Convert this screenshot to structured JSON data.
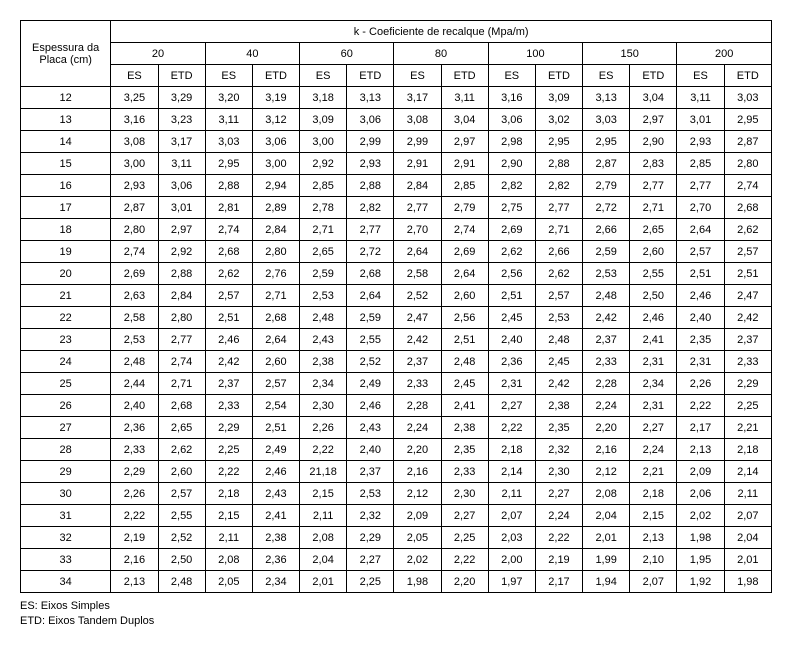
{
  "header": {
    "rowLabel": "Espessura da Placa (cm)",
    "groupLabel": "k - Coeficiente de recalque (Mpa/m)",
    "kValues": [
      "20",
      "40",
      "60",
      "80",
      "100",
      "150",
      "200"
    ],
    "subCols": [
      "ES",
      "ETD"
    ]
  },
  "rows": [
    {
      "ep": "12",
      "v": [
        "3,25",
        "3,29",
        "3,20",
        "3,19",
        "3,18",
        "3,13",
        "3,17",
        "3,11",
        "3,16",
        "3,09",
        "3,13",
        "3,04",
        "3,11",
        "3,03"
      ]
    },
    {
      "ep": "13",
      "v": [
        "3,16",
        "3,23",
        "3,11",
        "3,12",
        "3,09",
        "3,06",
        "3,08",
        "3,04",
        "3,06",
        "3,02",
        "3,03",
        "2,97",
        "3,01",
        "2,95"
      ]
    },
    {
      "ep": "14",
      "v": [
        "3,08",
        "3,17",
        "3,03",
        "3,06",
        "3,00",
        "2,99",
        "2,99",
        "2,97",
        "2,98",
        "2,95",
        "2,95",
        "2,90",
        "2,93",
        "2,87"
      ]
    },
    {
      "ep": "15",
      "v": [
        "3,00",
        "3,11",
        "2,95",
        "3,00",
        "2,92",
        "2,93",
        "2,91",
        "2,91",
        "2,90",
        "2,88",
        "2,87",
        "2,83",
        "2,85",
        "2,80"
      ]
    },
    {
      "ep": "16",
      "v": [
        "2,93",
        "3,06",
        "2,88",
        "2,94",
        "2,85",
        "2,88",
        "2,84",
        "2,85",
        "2,82",
        "2,82",
        "2,79",
        "2,77",
        "2,77",
        "2,74"
      ]
    },
    {
      "ep": "17",
      "v": [
        "2,87",
        "3,01",
        "2,81",
        "2,89",
        "2,78",
        "2,82",
        "2,77",
        "2,79",
        "2,75",
        "2,77",
        "2,72",
        "2,71",
        "2,70",
        "2,68"
      ]
    },
    {
      "ep": "18",
      "v": [
        "2,80",
        "2,97",
        "2,74",
        "2,84",
        "2,71",
        "2,77",
        "2,70",
        "2,74",
        "2,69",
        "2,71",
        "2,66",
        "2,65",
        "2,64",
        "2,62"
      ]
    },
    {
      "ep": "19",
      "v": [
        "2,74",
        "2,92",
        "2,68",
        "2,80",
        "2,65",
        "2,72",
        "2,64",
        "2,69",
        "2,62",
        "2,66",
        "2,59",
        "2,60",
        "2,57",
        "2,57"
      ]
    },
    {
      "ep": "20",
      "v": [
        "2,69",
        "2,88",
        "2,62",
        "2,76",
        "2,59",
        "2,68",
        "2,58",
        "2,64",
        "2,56",
        "2,62",
        "2,53",
        "2,55",
        "2,51",
        "2,51"
      ]
    },
    {
      "ep": "21",
      "v": [
        "2,63",
        "2,84",
        "2,57",
        "2,71",
        "2,53",
        "2,64",
        "2,52",
        "2,60",
        "2,51",
        "2,57",
        "2,48",
        "2,50",
        "2,46",
        "2,47"
      ]
    },
    {
      "ep": "22",
      "v": [
        "2,58",
        "2,80",
        "2,51",
        "2,68",
        "2,48",
        "2,59",
        "2,47",
        "2,56",
        "2,45",
        "2,53",
        "2,42",
        "2,46",
        "2,40",
        "2,42"
      ]
    },
    {
      "ep": "23",
      "v": [
        "2,53",
        "2,77",
        "2,46",
        "2,64",
        "2,43",
        "2,55",
        "2,42",
        "2,51",
        "2,40",
        "2,48",
        "2,37",
        "2,41",
        "2,35",
        "2,37"
      ]
    },
    {
      "ep": "24",
      "v": [
        "2,48",
        "2,74",
        "2,42",
        "2,60",
        "2,38",
        "2,52",
        "2,37",
        "2,48",
        "2,36",
        "2,45",
        "2,33",
        "2,31",
        "2,31",
        "2,33"
      ]
    },
    {
      "ep": "25",
      "v": [
        "2,44",
        "2,71",
        "2,37",
        "2,57",
        "2,34",
        "2,49",
        "2,33",
        "2,45",
        "2,31",
        "2,42",
        "2,28",
        "2,34",
        "2,26",
        "2,29"
      ]
    },
    {
      "ep": "26",
      "v": [
        "2,40",
        "2,68",
        "2,33",
        "2,54",
        "2,30",
        "2,46",
        "2,28",
        "2,41",
        "2,27",
        "2,38",
        "2,24",
        "2,31",
        "2,22",
        "2,25"
      ]
    },
    {
      "ep": "27",
      "v": [
        "2,36",
        "2,65",
        "2,29",
        "2,51",
        "2,26",
        "2,43",
        "2,24",
        "2,38",
        "2,22",
        "2,35",
        "2,20",
        "2,27",
        "2,17",
        "2,21"
      ]
    },
    {
      "ep": "28",
      "v": [
        "2,33",
        "2,62",
        "2,25",
        "2,49",
        "2,22",
        "2,40",
        "2,20",
        "2,35",
        "2,18",
        "2,32",
        "2,16",
        "2,24",
        "2,13",
        "2,18"
      ]
    },
    {
      "ep": "29",
      "v": [
        "2,29",
        "2,60",
        "2,22",
        "2,46",
        "21,18",
        "2,37",
        "2,16",
        "2,33",
        "2,14",
        "2,30",
        "2,12",
        "2,21",
        "2,09",
        "2,14"
      ]
    },
    {
      "ep": "30",
      "v": [
        "2,26",
        "2,57",
        "2,18",
        "2,43",
        "2,15",
        "2,53",
        "2,12",
        "2,30",
        "2,11",
        "2,27",
        "2,08",
        "2,18",
        "2,06",
        "2,11"
      ]
    },
    {
      "ep": "31",
      "v": [
        "2,22",
        "2,55",
        "2,15",
        "2,41",
        "2,11",
        "2,32",
        "2,09",
        "2,27",
        "2,07",
        "2,24",
        "2,04",
        "2,15",
        "2,02",
        "2,07"
      ]
    },
    {
      "ep": "32",
      "v": [
        "2,19",
        "2,52",
        "2,11",
        "2,38",
        "2,08",
        "2,29",
        "2,05",
        "2,25",
        "2,03",
        "2,22",
        "2,01",
        "2,13",
        "1,98",
        "2,04"
      ]
    },
    {
      "ep": "33",
      "v": [
        "2,16",
        "2,50",
        "2,08",
        "2,36",
        "2,04",
        "2,27",
        "2,02",
        "2,22",
        "2,00",
        "2,19",
        "1,99",
        "2,10",
        "1,95",
        "2,01"
      ]
    },
    {
      "ep": "34",
      "v": [
        "2,13",
        "2,48",
        "2,05",
        "2,34",
        "2,01",
        "2,25",
        "1,98",
        "2,20",
        "1,97",
        "2,17",
        "1,94",
        "2,07",
        "1,92",
        "1,98"
      ]
    }
  ],
  "legend": {
    "line1": "ES: Eixos Simples",
    "line2": "ETD: Eixos Tandem Duplos"
  }
}
